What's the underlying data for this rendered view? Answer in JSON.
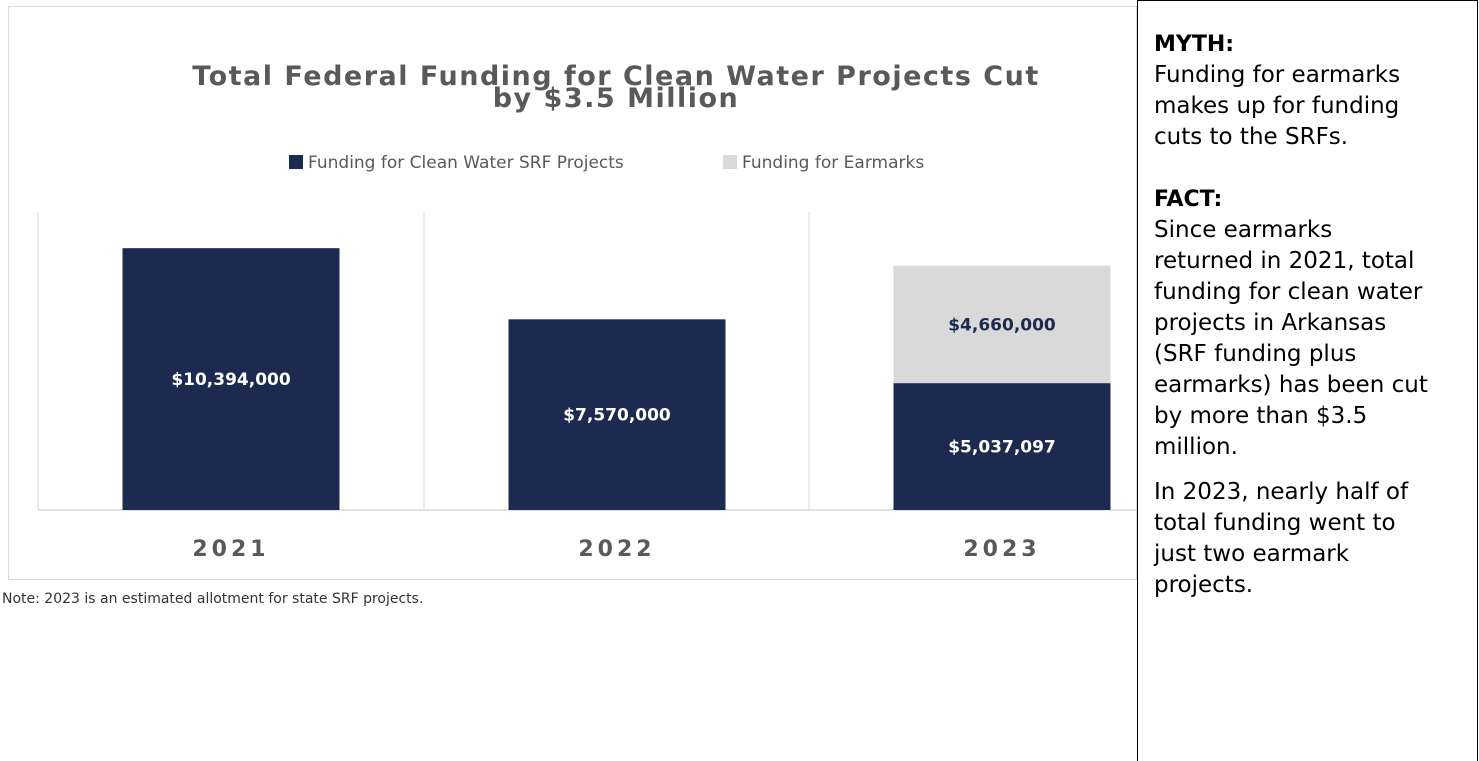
{
  "chart_data": {
    "type": "bar",
    "stacked": true,
    "title": "Total Federal Funding for Clean Water Projects  Cut by $3.5 Million",
    "title_lines": [
      "Total Federal Funding for Clean Water Projects  Cut",
      "by $3.5 Million"
    ],
    "categories": [
      "2021",
      "2022",
      "2023"
    ],
    "series": [
      {
        "name": "Funding for Clean Water SRF Projects",
        "color": "#1b2a4e",
        "values": [
          10394000,
          7570000,
          5037097
        ],
        "labels": [
          "$10,394,000",
          "$7,570,000",
          "$5,037,097"
        ]
      },
      {
        "name": "Funding for Earmarks",
        "color": "#d9d9d9",
        "values": [
          0,
          0,
          4660000
        ],
        "labels": [
          "",
          "",
          "$4,660,000"
        ]
      }
    ],
    "ylim": [
      0,
      11830000
    ],
    "legend_position": "top",
    "grid": false
  },
  "note": "Note: 2023 is an estimated allotment for state SRF projects.",
  "side_panel": {
    "myth_heading": "MYTH:",
    "myth_lines": [
      "Funding for earmarks",
      "makes up for funding",
      "cuts to the SRFs."
    ],
    "fact_heading": "FACT:",
    "fact_lines": [
      "Since earmarks",
      "returned in 2021, total",
      "funding for clean water",
      "projects in Arkansas",
      "(SRF funding plus",
      "earmarks) has been cut",
      "by more than $3.5",
      "million."
    ],
    "extra_lines": [
      "In 2023, nearly half of",
      "total funding went to",
      "just two earmark",
      "projects."
    ]
  },
  "colors": {
    "navy": "#1b2a4e",
    "gray": "#d9d9d9",
    "text_gray": "#595959"
  }
}
